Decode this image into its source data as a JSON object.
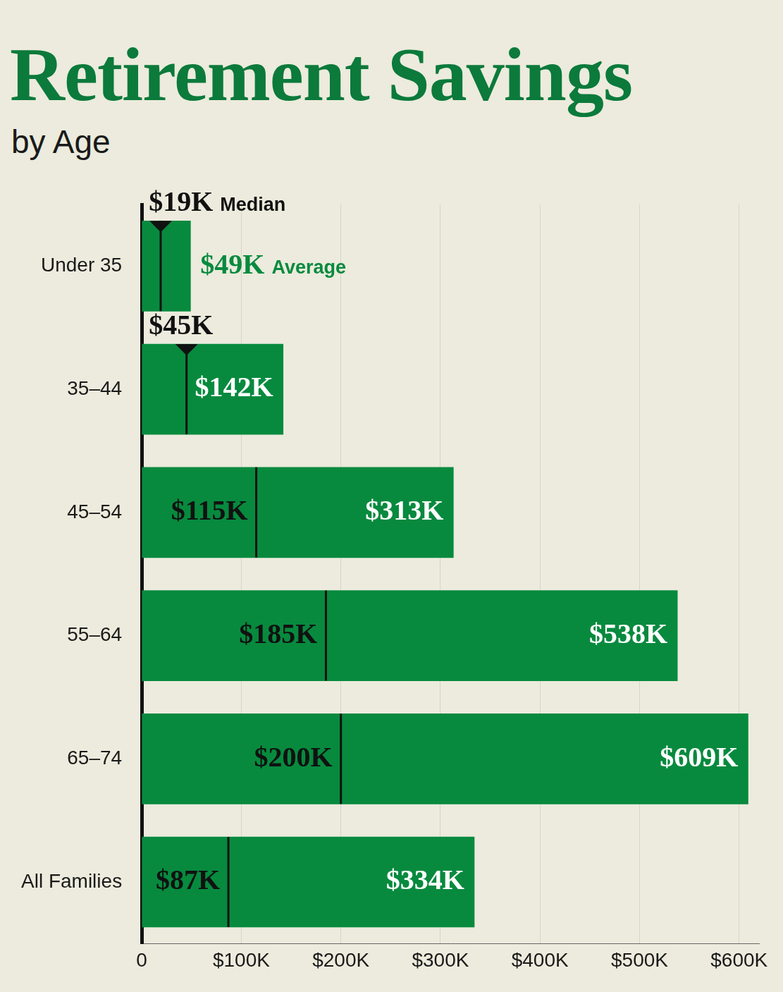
{
  "chart_data": {
    "type": "bar",
    "title": "Retirement Savings",
    "subtitle": "by Age",
    "orientation": "horizontal",
    "categories": [
      "Under 35",
      "35–44",
      "45–54",
      "55–64",
      "65–74",
      "All Families"
    ],
    "series": [
      {
        "name": "Average",
        "color": "#078a3e",
        "values": [
          49,
          142,
          313,
          538,
          609,
          334
        ],
        "value_labels": [
          "$49K",
          "$142K",
          "$313K",
          "$538K",
          "$609K",
          "$334K"
        ]
      },
      {
        "name": "Median",
        "color": "#111111",
        "marker": "vline",
        "values": [
          19,
          45,
          115,
          185,
          200,
          87
        ],
        "value_labels": [
          "$19K",
          "$45K",
          "$115K",
          "$185K",
          "$200K",
          "$87K"
        ]
      }
    ],
    "xlim": [
      0,
      620
    ],
    "xticks": [
      0,
      {
        "value": 100,
        "label": "$100K"
      },
      {
        "value": 200,
        "label": "$200K"
      },
      {
        "value": 300,
        "label": "$300K"
      },
      {
        "value": 400,
        "label": "$400K"
      },
      {
        "value": 500,
        "label": "$500K"
      },
      {
        "value": 600,
        "label": "$600K"
      }
    ],
    "grid": true,
    "data_labels": true
  }
}
